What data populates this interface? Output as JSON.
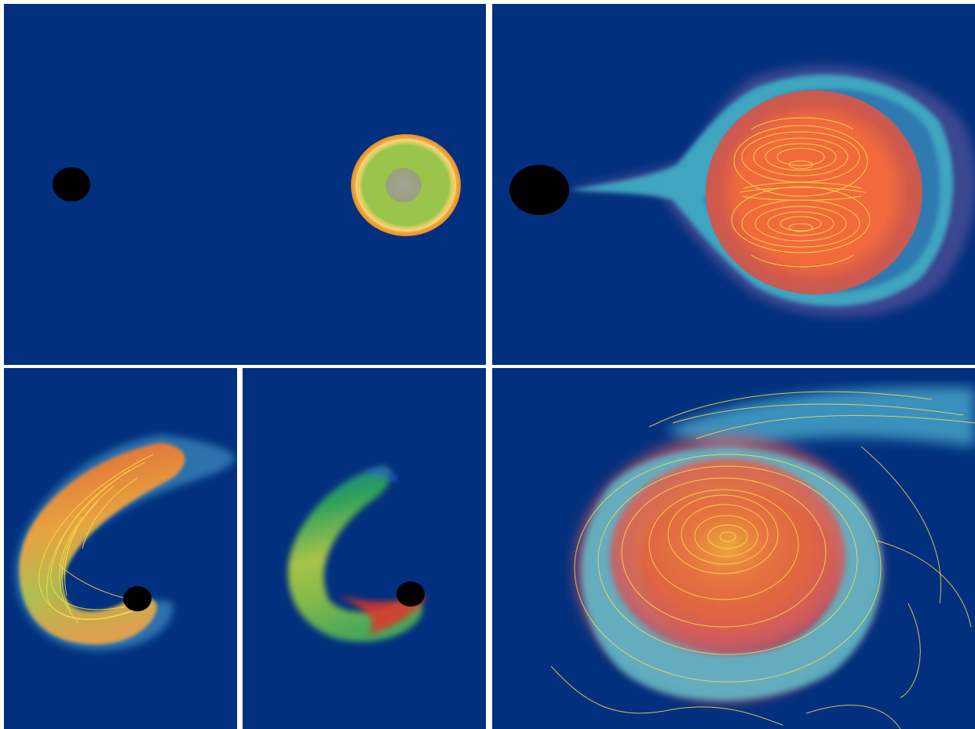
{
  "figure": {
    "background": "#02307e",
    "black_hole_color": "#000000",
    "field_line_color": "#ffe14a",
    "panels": [
      {
        "id": "initial-approach",
        "content": [
          "black-hole",
          "neutron-star"
        ]
      },
      {
        "id": "tidal-stretching",
        "content": [
          "black-hole",
          "neutron-star",
          "field-lines"
        ]
      },
      {
        "id": "disruption-tail",
        "content": [
          "black-hole",
          "crescent-debris",
          "field-lines"
        ]
      },
      {
        "id": "disruption-tail-alt",
        "content": [
          "black-hole",
          "crescent-debris"
        ]
      },
      {
        "id": "accretion-disk",
        "content": [
          "accretion-disk",
          "field-lines"
        ]
      }
    ]
  }
}
